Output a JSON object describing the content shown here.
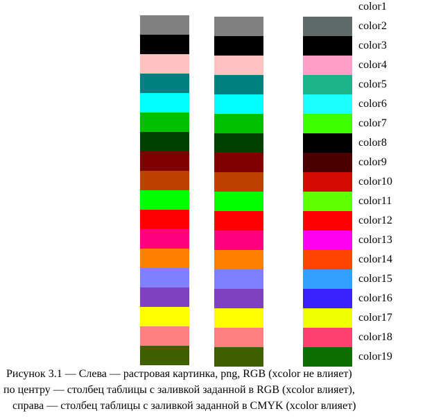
{
  "rows": [
    {
      "label": "color1",
      "left": null,
      "middle": null,
      "right": null
    },
    {
      "label": "color2",
      "left": "#808080",
      "middle": "#808080",
      "right": "#5f6a6a"
    },
    {
      "label": "color3",
      "left": "#000000",
      "middle": "#000000",
      "right": "#000000"
    },
    {
      "label": "color4",
      "left": "#ffc0c0",
      "middle": "#ffc0c0",
      "right": "#ff9fc7"
    },
    {
      "label": "color5",
      "left": "#008080",
      "middle": "#008080",
      "right": "#1db38a"
    },
    {
      "label": "color6",
      "left": "#00ffff",
      "middle": "#00ffff",
      "right": "#1affff"
    },
    {
      "label": "color7",
      "left": "#00c000",
      "middle": "#00c000",
      "right": "#3dff00"
    },
    {
      "label": "color8",
      "left": "#004000",
      "middle": "#004000",
      "right": "#000000"
    },
    {
      "label": "color9",
      "left": "#800000",
      "middle": "#800000",
      "right": "#4c0000"
    },
    {
      "label": "color10",
      "left": "#c04000",
      "middle": "#c04000",
      "right": "#d40b00"
    },
    {
      "label": "color11",
      "left": "#00ff00",
      "middle": "#00ff00",
      "right": "#5eff00"
    },
    {
      "label": "color12",
      "left": "#ff0000",
      "middle": "#ff0000",
      "right": "#ff0000"
    },
    {
      "label": "color13",
      "left": "#ff0080",
      "middle": "#ff0080",
      "right": "#ff00f0"
    },
    {
      "label": "color14",
      "left": "#ff8000",
      "middle": "#ff8000",
      "right": "#ff4400"
    },
    {
      "label": "color15",
      "left": "#8080ff",
      "middle": "#8080ff",
      "right": "#33a0ff"
    },
    {
      "label": "color16",
      "left": "#8040c0",
      "middle": "#8040c0",
      "right": "#3a22ff"
    },
    {
      "label": "color17",
      "left": "#ffff00",
      "middle": "#ffff00",
      "right": "#f0ff00"
    },
    {
      "label": "color18",
      "left": "#ff8080",
      "middle": "#ff8080",
      "right": "#ff4070"
    },
    {
      "label": "color19",
      "left": "#406000",
      "middle": "#406000",
      "right": "#0b7000"
    }
  ],
  "caption": {
    "line1": "Рисунок 3.1 — Слева — растровая картинка, png, RGB (xcolor не влияет)",
    "line2": "по центру — столбец таблицы с заливкой заданной в RGB (xcolor влияет),",
    "line3": "справа — столбец таблицы с заливкой заданной в CMYK (xcolor влияет)"
  }
}
